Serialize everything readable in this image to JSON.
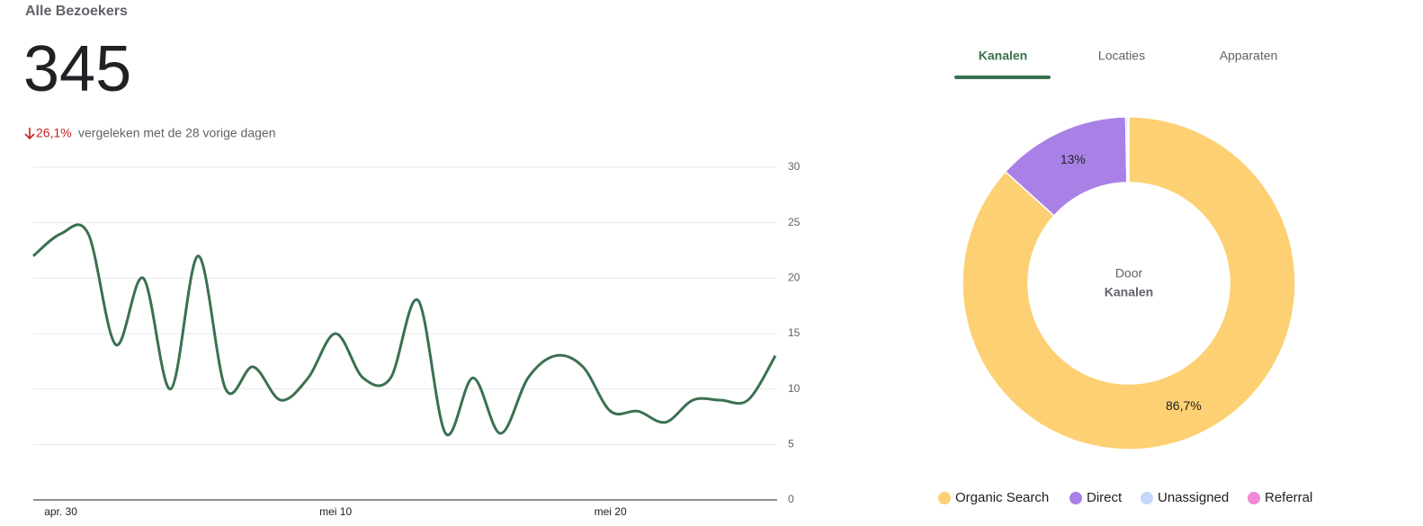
{
  "header": {
    "title": "Alle Bezoekers",
    "total": "345",
    "change": "26,1%",
    "comparison": "vergeleken met de 28 vorige dagen"
  },
  "tabs": [
    "Kanalen",
    "Locaties",
    "Apparaten"
  ],
  "donut_center": [
    "Door",
    "Kanalen"
  ],
  "chart_data": [
    {
      "type": "line",
      "categories": [
        null,
        "apr. 30",
        null,
        null,
        null,
        null,
        null,
        null,
        null,
        null,
        null,
        "mei 10",
        null,
        null,
        null,
        null,
        null,
        null,
        null,
        null,
        null,
        "mei 20",
        null,
        null,
        null,
        null,
        null,
        null
      ],
      "series": [
        {
          "color": "#3a7150",
          "values": [
            22,
            24,
            24,
            14,
            20,
            10,
            22,
            10,
            12,
            9,
            11,
            15,
            11,
            11,
            18,
            6,
            11,
            6,
            11,
            13,
            12,
            8,
            8,
            7,
            9,
            9,
            9,
            13
          ]
        }
      ],
      "ylim": [
        0,
        30
      ],
      "yticks": [
        0,
        5,
        10,
        15,
        20,
        25,
        30
      ],
      "grid": true
    },
    {
      "type": "donut",
      "categories": [
        "Organic Search",
        "Direct",
        "Unassigned",
        "Referral"
      ],
      "values": [
        86.7,
        13,
        0.2,
        0.1
      ],
      "value_labels": [
        "86,7%",
        "13%",
        null,
        null
      ],
      "colors": [
        "#fdd073",
        "#a981e6",
        "#c3d7fb",
        "#f08ad8"
      ]
    }
  ]
}
